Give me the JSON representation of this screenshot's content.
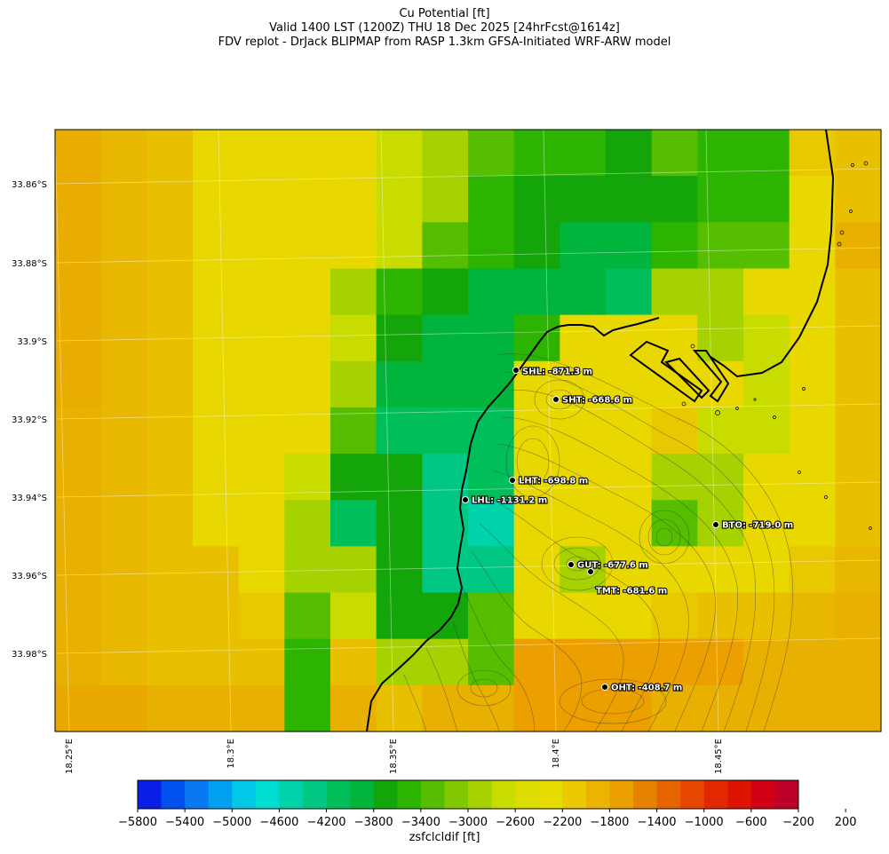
{
  "title": {
    "line1": "Cu Potential [ft]",
    "line2": "Valid 1400 LST (1200Z) THU 18 Dec 2025 [24hrFcst@1614z]",
    "line3": "FDV replot - DrJack BLIPMAP from RASP 1.3km GFSA-Initiated WRF-ARW model"
  },
  "lat_labels": [
    "33.86°S",
    "33.88°S",
    "33.9°S",
    "33.92°S",
    "33.94°S",
    "33.96°S",
    "33.98°S"
  ],
  "lon_labels": [
    "18.25°E",
    "18.3°E",
    "18.35°E",
    "18.4°E",
    "18.45°E"
  ],
  "stations": [
    {
      "label": "SHL: -871.3 m"
    },
    {
      "label": "SHT: -668.6 m"
    },
    {
      "label": "LHT: -698.8 m"
    },
    {
      "label": "LHL: -1131.2 m"
    },
    {
      "label": "BTO: -719.0 m"
    },
    {
      "label": "GUT: -677.6 m"
    },
    {
      "label": "TMT: -681.6 m"
    },
    {
      "label": "OHT: -408.7 m"
    }
  ],
  "colorbar": {
    "title": "zsfclcldif [ft]",
    "tick_labels": [
      "−5800",
      "−5400",
      "−5000",
      "−4600",
      "−4200",
      "−3800",
      "−3400",
      "−3000",
      "−2600",
      "−2200",
      "−1800",
      "−1400",
      "−1000",
      "−600",
      "−200",
      "200"
    ],
    "colors": [
      "#0a1ee6",
      "#0050f0",
      "#0a78f0",
      "#00a0f0",
      "#00c8e6",
      "#00dcd2",
      "#00d2aa",
      "#00c882",
      "#00be5a",
      "#00b43c",
      "#14a50a",
      "#2db400",
      "#55be00",
      "#82c800",
      "#a5d200",
      "#c8dc00",
      "#dcdc00",
      "#e6dc00",
      "#ebc800",
      "#ebb400",
      "#eba000",
      "#e68200",
      "#e66400",
      "#e64600",
      "#e12800",
      "#dc1400",
      "#d20014",
      "#be0028"
    ]
  },
  "map": {
    "grid_colors": [
      [
        "#e8ad00",
        "#e8b800",
        "#e8c000",
        "#e8d800",
        "#e8d800",
        "#e8d800",
        "#e8d800",
        "#c8dc00",
        "#a5d200",
        "#55be00",
        "#2db400",
        "#2db400",
        "#14a50a",
        "#55be00",
        "#2db400",
        "#2db400",
        "#e8c800",
        "#e8c000"
      ],
      [
        "#e8ad00",
        "#e8b800",
        "#e8c000",
        "#e8d800",
        "#e8d800",
        "#e8d800",
        "#e8d800",
        "#c8dc00",
        "#a5d200",
        "#2db400",
        "#14a50a",
        "#14a50a",
        "#14a50a",
        "#14a50a",
        "#2db400",
        "#2db400",
        "#e8d800",
        "#e8c000"
      ],
      [
        "#e8ad00",
        "#e8b800",
        "#e8c000",
        "#e8d800",
        "#e8d800",
        "#e8d800",
        "#e8d800",
        "#c8dc00",
        "#55be00",
        "#2db400",
        "#14a50a",
        "#00b43c",
        "#00b43c",
        "#2db400",
        "#55be00",
        "#55be00",
        "#e8d800",
        "#e8b000"
      ],
      [
        "#e8ad00",
        "#e8b800",
        "#e8c000",
        "#e8d800",
        "#e8d800",
        "#e8d800",
        "#a5d200",
        "#2db400",
        "#14a50a",
        "#00b43c",
        "#00b43c",
        "#00b43c",
        "#00be5a",
        "#a5d200",
        "#a5d200",
        "#e8d800",
        "#e8d800",
        "#e8c000"
      ],
      [
        "#e8ad00",
        "#e8b800",
        "#e8c000",
        "#e8d800",
        "#e8d800",
        "#e8d800",
        "#c8dc00",
        "#14a50a",
        "#00b43c",
        "#00b43c",
        "#2db400",
        "#e8d800",
        "#e8d800",
        "#e8d800",
        "#a5d200",
        "#c8dc00",
        "#e8d800",
        "#e8c000"
      ],
      [
        "#e8ad00",
        "#e8b800",
        "#e8c000",
        "#e8d800",
        "#e8d800",
        "#e8d800",
        "#a5d200",
        "#00b43c",
        "#00b43c",
        "#00b43c",
        "#e8d800",
        "#e8d800",
        "#e8d800",
        "#e8d800",
        "#e8d800",
        "#c8dc00",
        "#e8d800",
        "#e8c000"
      ],
      [
        "#e8b000",
        "#e8b800",
        "#e8c000",
        "#e8d800",
        "#e8d800",
        "#e8d800",
        "#55be00",
        "#00be5a",
        "#00be5a",
        "#00be5a",
        "#e8d800",
        "#e8d800",
        "#e8d800",
        "#e8c800",
        "#c8dc00",
        "#c8dc00",
        "#e8d800",
        "#e8c000"
      ],
      [
        "#e8b000",
        "#e8b800",
        "#e8c000",
        "#e8d800",
        "#e8d800",
        "#c8dc00",
        "#14a50a",
        "#14a50a",
        "#00c882",
        "#00be5a",
        "#e8d800",
        "#e8d800",
        "#e8d800",
        "#a5d200",
        "#a5d200",
        "#e8d800",
        "#e8d800",
        "#e8c000"
      ],
      [
        "#e8b000",
        "#e8b800",
        "#e8c000",
        "#e8d800",
        "#e8d800",
        "#a5d200",
        "#00be5a",
        "#14a50a",
        "#00c882",
        "#00d2aa",
        "#e8d800",
        "#e8d800",
        "#e8d800",
        "#55be00",
        "#a5d200",
        "#e8d800",
        "#e8d800",
        "#e8c000"
      ],
      [
        "#e8b000",
        "#e8b800",
        "#e8c000",
        "#e8c000",
        "#e8d800",
        "#a5d200",
        "#a5d200",
        "#14a50a",
        "#00c882",
        "#00c882",
        "#e8d800",
        "#a5d200",
        "#e8d800",
        "#e8d800",
        "#e8d800",
        "#e8d800",
        "#e8c800",
        "#e8b800"
      ],
      [
        "#e8b000",
        "#e8b800",
        "#e8c000",
        "#e8c000",
        "#e8c800",
        "#55be00",
        "#c8dc00",
        "#14a50a",
        "#14a50a",
        "#55be00",
        "#e8d800",
        "#e8d800",
        "#e8d800",
        "#e8c800",
        "#e8c000",
        "#e8c000",
        "#e8b800",
        "#e8b000"
      ],
      [
        "#e8b000",
        "#e8b800",
        "#e8c000",
        "#e8c000",
        "#e8c000",
        "#2db400",
        "#e8c000",
        "#a5d200",
        "#a5d200",
        "#55be00",
        "#eba000",
        "#eba000",
        "#eba000",
        "#eba000",
        "#eba000",
        "#e8b000",
        "#e8b000",
        "#e8b000"
      ],
      [
        "#e8a800",
        "#e8a800",
        "#e8b000",
        "#e8b000",
        "#e8b000",
        "#2db400",
        "#e8b000",
        "#e8c000",
        "#e8b000",
        "#e8b000",
        "#eba000",
        "#eba000",
        "#eba000",
        "#e8b000",
        "#e8b000",
        "#e8b000",
        "#e8b000",
        "#e8b000"
      ]
    ]
  }
}
